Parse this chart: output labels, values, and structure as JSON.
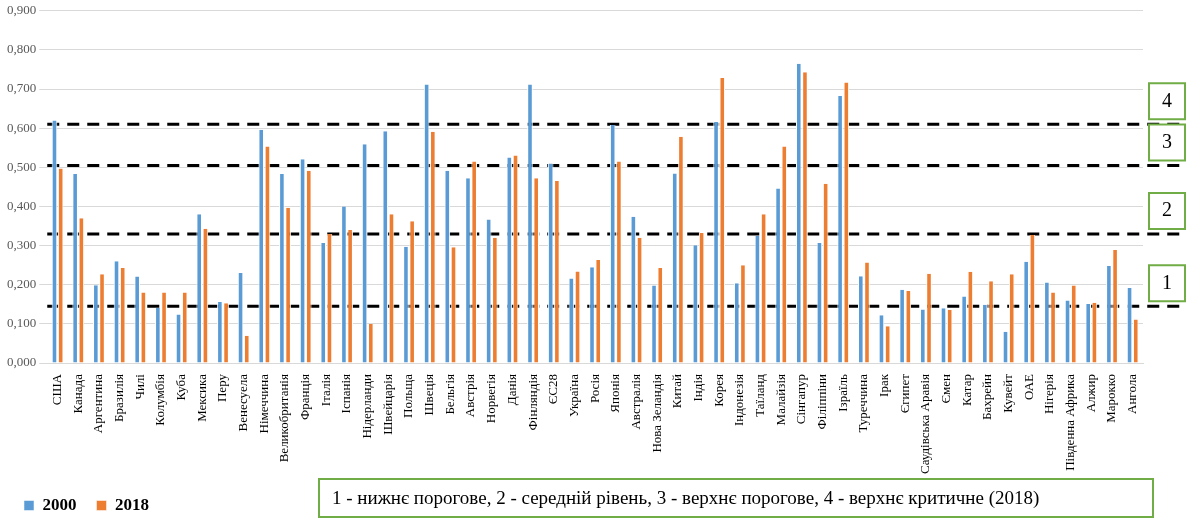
{
  "chart_data": {
    "type": "bar",
    "categories": [
      "США",
      "Канада",
      "Аргентина",
      "Бразилія",
      "Чилі",
      "Колумбія",
      "Куба",
      "Мексика",
      "Перу",
      "Венесуела",
      "Німеччина",
      "Великобританія",
      "Франція",
      "Італія",
      "Іспанія",
      "Нідерланди",
      "Швейцарія",
      "Польща",
      "Швеція",
      "Бельгія",
      "Австрія",
      "Норвегія",
      "Данія",
      "Фінляндія",
      "ЄС28",
      "Україна",
      "Росія",
      "Японія",
      "Австралія",
      "Нова Зеландія",
      "Китай",
      "Індія",
      "Корея",
      "Індонезія",
      "Таїланд",
      "Малайзія",
      "Сінгапур",
      "Філіппіни",
      "Ізраїль",
      "Туреччина",
      "Ірак",
      "Єгипет",
      "Саудівська Аравія",
      "Ємен",
      "Катар",
      "Бахрейн",
      "Кувейт",
      "ОАЕ",
      "Нігерія",
      "Південна Африка",
      "Алжир",
      "Марокко",
      "Ангола"
    ],
    "series": [
      {
        "name": "2000",
        "color": "#5b9bd5",
        "values": [
          0.62,
          0.483,
          0.199,
          0.26,
          0.221,
          0.141,
          0.124,
          0.38,
          0.156,
          0.23,
          0.596,
          0.483,
          0.521,
          0.307,
          0.4,
          0.559,
          0.592,
          0.297,
          0.712,
          0.491,
          0.472,
          0.367,
          0.525,
          0.712,
          0.51,
          0.216,
          0.245,
          0.608,
          0.374,
          0.198,
          0.484,
          0.301,
          0.616,
          0.204,
          0.325,
          0.446,
          0.765,
          0.307,
          0.682,
          0.222,
          0.122,
          0.187,
          0.137,
          0.14,
          0.17,
          0.149,
          0.08,
          0.259,
          0.206,
          0.16,
          0.151,
          0.248,
          0.192
        ]
      },
      {
        "name": "2018",
        "color": "#ed7d31",
        "values": [
          0.497,
          0.37,
          0.227,
          0.243,
          0.18,
          0.18,
          0.18,
          0.343,
          0.153,
          0.07,
          0.553,
          0.397,
          0.491,
          0.33,
          0.34,
          0.1,
          0.38,
          0.362,
          0.591,
          0.296,
          0.515,
          0.32,
          0.53,
          0.472,
          0.465,
          0.234,
          0.263,
          0.515,
          0.32,
          0.243,
          0.578,
          0.332,
          0.728,
          0.25,
          0.38,
          0.553,
          0.743,
          0.458,
          0.717,
          0.257,
          0.094,
          0.184,
          0.228,
          0.136,
          0.233,
          0.209,
          0.227,
          0.327,
          0.18,
          0.198,
          0.154,
          0.289,
          0.111
        ]
      }
    ],
    "ylim": [
      0,
      0.9
    ],
    "yticks": [
      {
        "value": 0,
        "label": "0,000"
      },
      {
        "value": 0.1,
        "label": "0,100"
      },
      {
        "value": 0.2,
        "label": "0,200"
      },
      {
        "value": 0.3,
        "label": "0,300"
      },
      {
        "value": 0.4,
        "label": "0,400"
      },
      {
        "value": 0.5,
        "label": "0,500"
      },
      {
        "value": 0.6,
        "label": "0,600"
      },
      {
        "value": 0.7,
        "label": "0,700"
      },
      {
        "value": 0.8,
        "label": "0,800"
      },
      {
        "value": 0.9,
        "label": "0,900"
      }
    ],
    "grid": "y",
    "legend": "bottom left",
    "ref_lines": [
      {
        "axis": "y",
        "value": 0.145,
        "color": "#000000",
        "line_style": "dashed"
      },
      {
        "axis": "y",
        "value": 0.33,
        "color": "#000000",
        "line_style": "dashed"
      },
      {
        "axis": "y",
        "value": 0.505,
        "color": "#000000",
        "line_style": "dashed"
      },
      {
        "axis": "y",
        "value": 0.61,
        "color": "#000000",
        "line_style": "dashed"
      }
    ],
    "annotations": [
      "1 - нижнє порогове, 2 - середній рівень, 3 - верхнє порогове, 4 - верхнє критичне  (2018)",
      {
        "text": "1",
        "y": 0.145
      },
      {
        "text": "2",
        "y": 0.33
      },
      {
        "text": "3",
        "y": 0.505
      },
      {
        "text": "4",
        "y": 0.61
      }
    ]
  }
}
